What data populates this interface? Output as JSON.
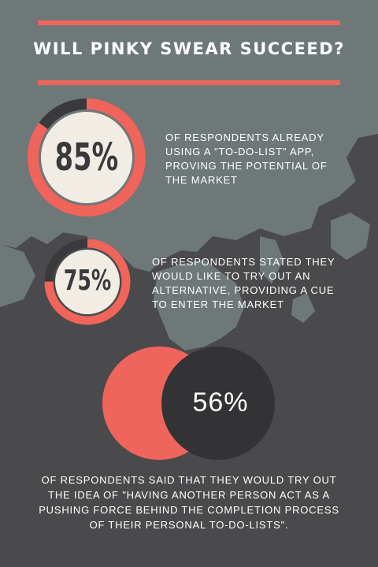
{
  "title": "WILL PINKY SWEAR SUCCEED?",
  "colors": {
    "accent": "#f0655b",
    "map": "#6f7879",
    "background": "#4a4a4c",
    "ring_track": "#3a3a3c",
    "ring_fill": "#f1ede4",
    "dark_circle": "#333336"
  },
  "stats": [
    {
      "value": "85%",
      "percent": 85,
      "text": "OF RESPONDENTS ALREADY USING A \"TO-DO-LIST\" APP, PROVING THE POTENTIAL OF THE MARKET"
    },
    {
      "value": "75%",
      "percent": 75,
      "text": "OF RESPONDENTS STATED THEY WOULD LIKE TO TRY OUT AN ALTERNATIVE, PROVIDING A CUE TO ENTER THE MARKET"
    },
    {
      "value": "56%",
      "percent": 56,
      "text": "OF RESPONDENTS SAID THAT THEY WOULD TRY OUT THE IDEA OF \"HAVING ANOTHER PERSON ACT AS A PUSHING FORCE BEHIND THE COMPLETION PROCESS OF THEIR PERSONAL TO-DO-LISTS\"."
    }
  ]
}
